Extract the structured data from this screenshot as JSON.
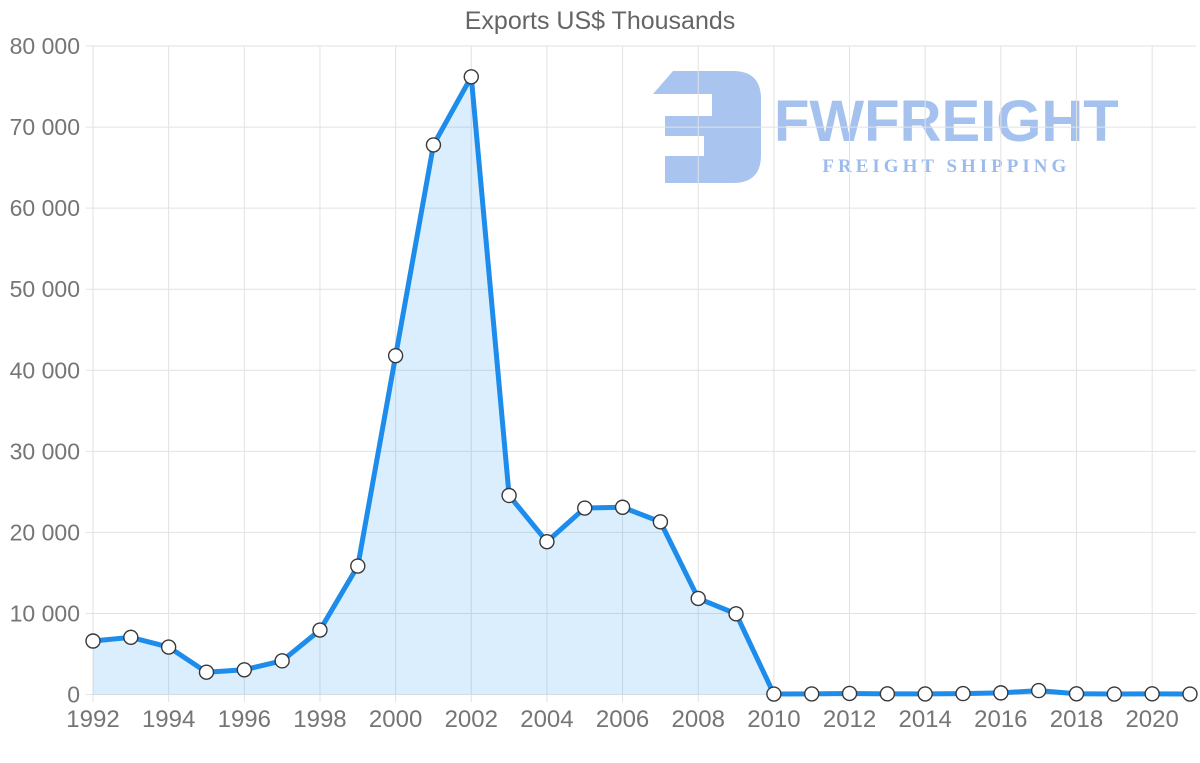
{
  "title": "Exports US$ Thousands",
  "watermark": {
    "brand": "FWFREIGHT",
    "tagline": "FREIGHT SHIPPING",
    "glyph_color": "#a9c4ef",
    "brand_color": "#a5c2ef",
    "tagline_color": "#9cbbec"
  },
  "chart_data": {
    "type": "area",
    "title": "Exports US$ Thousands",
    "xlabel": "",
    "ylabel": "",
    "x": [
      1992,
      1993,
      1994,
      1995,
      1996,
      1997,
      1998,
      1999,
      2000,
      2001,
      2002,
      2003,
      2004,
      2005,
      2006,
      2007,
      2008,
      2009,
      2010,
      2011,
      2012,
      2013,
      2014,
      2015,
      2016,
      2017,
      2018,
      2019,
      2020,
      2021
    ],
    "values": [
      6600,
      7050,
      5850,
      2750,
      3050,
      4150,
      7950,
      15850,
      41800,
      67800,
      76200,
      24550,
      18850,
      23000,
      23100,
      21300,
      11850,
      9950,
      60,
      70,
      130,
      80,
      70,
      110,
      200,
      480,
      90,
      60,
      80,
      60
    ],
    "ylim": [
      0,
      80000
    ],
    "yticks": [
      0,
      10000,
      20000,
      30000,
      40000,
      50000,
      60000,
      70000,
      80000
    ],
    "xticks": [
      1992,
      1994,
      1996,
      1998,
      2000,
      2002,
      2004,
      2006,
      2008,
      2010,
      2012,
      2014,
      2016,
      2018,
      2020
    ],
    "grid": true,
    "legend": "none",
    "line_color": "#1d8ceb",
    "fill_color": "rgba(33,150,243,0.16)",
    "grid_color": "#e2e2e2",
    "axis_label_color": "#757575",
    "marker": {
      "fill": "#ffffff",
      "stroke": "#383838",
      "radius": 7,
      "stroke_width": 1.4
    },
    "line_width": 5
  }
}
